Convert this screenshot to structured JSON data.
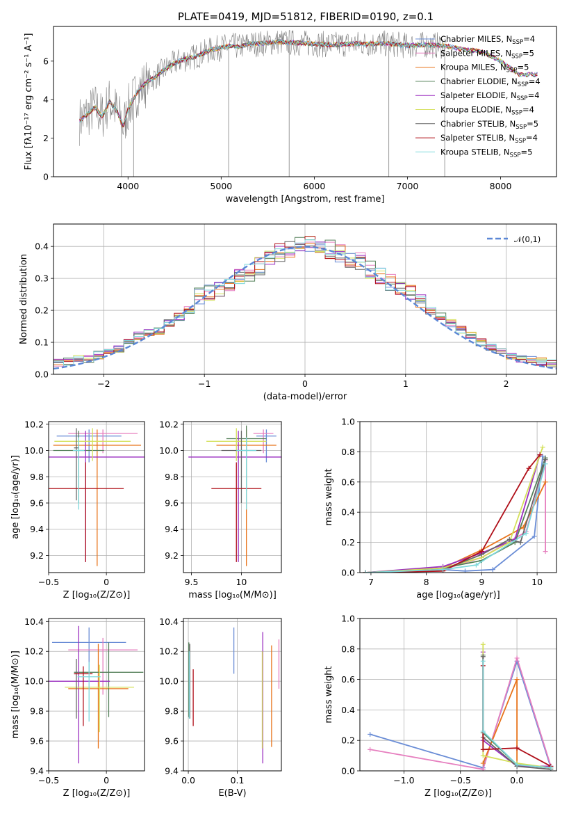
{
  "figure": {
    "title": "PLATE=0419, MJD=51812, FIBERID=0190, z=0.1"
  },
  "series": [
    {
      "name": "Chabrier MILES",
      "nssp": "4",
      "color": "#6a8dd6"
    },
    {
      "name": "Salpeter MILES",
      "nssp": "5",
      "color": "#e67fbf"
    },
    {
      "name": "Kroupa MILES",
      "nssp": "5",
      "color": "#e8731a"
    },
    {
      "name": "Chabrier ELODIE",
      "nssp": "4",
      "color": "#55805a"
    },
    {
      "name": "Salpeter ELODIE",
      "nssp": "4",
      "color": "#9b2fc0"
    },
    {
      "name": "Kroupa ELODIE",
      "nssp": "4",
      "color": "#d4e05a"
    },
    {
      "name": "Chabrier STELIB",
      "nssp": "5",
      "color": "#666666"
    },
    {
      "name": "Salpeter STELIB",
      "nssp": "4",
      "color": "#b0101a"
    },
    {
      "name": "Kroupa STELIB",
      "nssp": "5",
      "color": "#7dd8dc"
    }
  ],
  "chart_data": [
    {
      "id": "spectrum",
      "type": "line",
      "xlabel": "wavelength [Angstrom, rest frame]",
      "ylabel": "Flux [fλ10⁻¹⁷ erg cm⁻² s⁻¹ A⁻¹]",
      "xlim": [
        3200,
        8600
      ],
      "ylim": [
        0,
        7.8
      ],
      "xticks": [
        4000,
        5000,
        6000,
        7000,
        8000
      ],
      "yticks": [
        0,
        2,
        4,
        6
      ],
      "legend": "top-right",
      "model": {
        "x": [
          3480,
          3550,
          3650,
          3720,
          3800,
          3880,
          3950,
          4000,
          4100,
          4200,
          4300,
          4400,
          4500,
          4600,
          4700,
          4800,
          4900,
          5000,
          5100,
          5200,
          5300,
          5400,
          5500,
          5600,
          5800,
          6000,
          6200,
          6400,
          6600,
          6800,
          7000,
          7200,
          7400,
          7600,
          7800,
          8000,
          8200,
          8400
        ],
        "y": [
          2.9,
          3.2,
          3.6,
          3.1,
          3.9,
          3.4,
          2.6,
          3.5,
          4.4,
          4.9,
          5.2,
          5.6,
          5.9,
          6.1,
          6.2,
          6.4,
          6.6,
          6.7,
          6.8,
          6.75,
          6.9,
          6.9,
          6.95,
          7.0,
          6.95,
          6.9,
          6.85,
          6.9,
          6.9,
          6.9,
          6.8,
          6.85,
          6.8,
          6.6,
          6.5,
          6.0,
          5.3,
          5.3
        ]
      }
    },
    {
      "id": "residuals",
      "type": "line",
      "xlabel": "(data-model)/error",
      "ylabel": "Normed distribution",
      "xlim": [
        -2.5,
        2.5
      ],
      "ylim": [
        0,
        0.47
      ],
      "xticks": [
        -2,
        -1,
        0,
        1,
        2
      ],
      "yticks": [
        0.0,
        0.1,
        0.2,
        0.3,
        0.4
      ],
      "grid": true,
      "legend": "top-right",
      "reference_label": "𝒩(0,1)",
      "reference_color": "#5b87d6",
      "hist_x": [
        -2.5,
        -2.4,
        -2.3,
        -2.2,
        -2.1,
        -2.0,
        -1.9,
        -1.8,
        -1.7,
        -1.6,
        -1.5,
        -1.4,
        -1.3,
        -1.2,
        -1.1,
        -1.0,
        -0.9,
        -0.8,
        -0.7,
        -0.6,
        -0.5,
        -0.4,
        -0.3,
        -0.2,
        -0.1,
        0.0,
        0.1,
        0.2,
        0.3,
        0.4,
        0.5,
        0.6,
        0.7,
        0.8,
        0.9,
        1.0,
        1.1,
        1.2,
        1.3,
        1.4,
        1.5,
        1.6,
        1.7,
        1.8,
        1.9,
        2.0,
        2.1,
        2.2,
        2.3,
        2.4
      ],
      "hist_y": [
        0.035,
        0.04,
        0.05,
        0.048,
        0.06,
        0.07,
        0.08,
        0.1,
        0.12,
        0.13,
        0.135,
        0.16,
        0.18,
        0.2,
        0.24,
        0.25,
        0.26,
        0.28,
        0.3,
        0.32,
        0.34,
        0.36,
        0.38,
        0.39,
        0.4,
        0.41,
        0.4,
        0.39,
        0.38,
        0.36,
        0.35,
        0.33,
        0.31,
        0.29,
        0.27,
        0.25,
        0.22,
        0.2,
        0.18,
        0.16,
        0.14,
        0.12,
        0.1,
        0.085,
        0.07,
        0.06,
        0.05,
        0.045,
        0.04,
        0.035
      ]
    },
    {
      "id": "age_vs_Z",
      "type": "scatter",
      "xlabel": "Z [log₁₀(Z/Z⊙)]",
      "ylabel": "age  [log₁₀(age/yr)]",
      "xlim": [
        -0.5,
        0.33
      ],
      "ylim": [
        9.07,
        10.22
      ],
      "xticks": [
        -0.5,
        0.0
      ],
      "yticks": [
        9.2,
        9.4,
        9.6,
        9.8,
        10.0,
        10.2
      ],
      "grid": true,
      "points": [
        {
          "x": -0.15,
          "y": 10.11,
          "xerr": 0.28,
          "yerr_lo": 0.2,
          "yerr_hi": 0.05
        },
        {
          "x": -0.03,
          "y": 10.13,
          "xerr": 0.3,
          "yerr_lo": 0.15,
          "yerr_hi": 0.03
        },
        {
          "x": -0.08,
          "y": 10.04,
          "xerr": 0.38,
          "yerr_lo": 0.92,
          "yerr_hi": 0.12
        },
        {
          "x": -0.24,
          "y": 10.0,
          "xerr": 0.22,
          "yerr_lo": 0.4,
          "yerr_hi": 0.15
        },
        {
          "x": -0.18,
          "y": 9.95,
          "xerr": 0.52,
          "yerr_lo": 0.8,
          "yerr_hi": 0.2
        },
        {
          "x": -0.12,
          "y": 10.07,
          "xerr": 0.33,
          "yerr_lo": 0.15,
          "yerr_hi": 0.1
        },
        {
          "x": -0.26,
          "y": 10.02,
          "xerr": 0.02,
          "yerr_lo": 0.4,
          "yerr_hi": 0.15
        },
        {
          "x": -0.18,
          "y": 9.71,
          "xerr": 0.33,
          "yerr_lo": 0.56,
          "yerr_hi": 0.2
        },
        {
          "x": -0.24,
          "y": 10.0,
          "xerr": 0.05,
          "yerr_lo": 0.45,
          "yerr_hi": 0.1
        }
      ]
    },
    {
      "id": "age_vs_mass",
      "type": "scatter",
      "xlabel": "mass [log₁₀(M/M⊙)]",
      "ylabel": "",
      "xlim": [
        9.42,
        10.4
      ],
      "ylim": [
        9.07,
        10.22
      ],
      "xticks": [
        9.5,
        10.0
      ],
      "yticks": [
        9.2,
        9.4,
        9.6,
        9.8,
        10.0,
        10.2
      ],
      "grid": true,
      "points": [
        {
          "x": 10.25,
          "y": 10.11,
          "xerr": 0.1,
          "yerr_lo": 0.2,
          "yerr_hi": 0.05
        },
        {
          "x": 10.22,
          "y": 10.13,
          "xerr": 0.1,
          "yerr_lo": 0.15,
          "yerr_hi": 0.03
        },
        {
          "x": 10.05,
          "y": 10.04,
          "xerr": 0.3,
          "yerr_lo": 0.92,
          "yerr_hi": 0.12
        },
        {
          "x": 10.05,
          "y": 10.09,
          "xerr": 0.2,
          "yerr_lo": 0.4,
          "yerr_hi": 0.1
        },
        {
          "x": 9.97,
          "y": 9.95,
          "xerr": 0.5,
          "yerr_lo": 0.8,
          "yerr_hi": 0.2
        },
        {
          "x": 9.95,
          "y": 10.07,
          "xerr": 0.3,
          "yerr_lo": 0.15,
          "yerr_hi": 0.1
        },
        {
          "x": 10.0,
          "y": 10.0,
          "xerr": 0.2,
          "yerr_lo": 0.4,
          "yerr_hi": 0.15
        },
        {
          "x": 9.95,
          "y": 9.71,
          "xerr": 0.25,
          "yerr_lo": 0.56,
          "yerr_hi": 0.2
        },
        {
          "x": 10.05,
          "y": 10.0,
          "xerr": 0.1,
          "yerr_lo": 0.45,
          "yerr_hi": 0.1
        }
      ]
    },
    {
      "id": "mass_weight_vs_age",
      "type": "line",
      "xlabel": "age  [log₁₀(age/yr)]",
      "ylabel": "mass weight",
      "xlim": [
        6.8,
        10.35
      ],
      "ylim": [
        0,
        1
      ],
      "xticks": [
        7,
        8,
        9,
        10
      ],
      "yticks": [
        0.0,
        0.2,
        0.4,
        0.6,
        0.8,
        1.0
      ],
      "grid": true,
      "series_points": [
        [
          [
            6.9,
            0.0
          ],
          [
            8.3,
            0.02
          ],
          [
            8.7,
            0.01
          ],
          [
            9.2,
            0.02
          ],
          [
            9.95,
            0.24
          ],
          [
            10.1,
            0.77
          ]
        ],
        [
          [
            6.9,
            0.0
          ],
          [
            8.3,
            0.02
          ],
          [
            9.0,
            0.1
          ],
          [
            9.8,
            0.27
          ],
          [
            10.15,
            0.74
          ],
          [
            10.15,
            0.14
          ]
        ],
        [
          [
            6.9,
            0.0
          ],
          [
            8.3,
            0.03
          ],
          [
            9.0,
            0.15
          ],
          [
            9.75,
            0.3
          ],
          [
            10.15,
            0.6
          ]
        ],
        [
          [
            6.9,
            0.0
          ],
          [
            8.3,
            0.03
          ],
          [
            9.0,
            0.08
          ],
          [
            9.6,
            0.2
          ],
          [
            10.15,
            0.76
          ]
        ],
        [
          [
            6.9,
            0.0
          ],
          [
            8.3,
            0.04
          ],
          [
            9.0,
            0.13
          ],
          [
            9.6,
            0.22
          ],
          [
            10.05,
            0.78
          ]
        ],
        [
          [
            6.9,
            0.0
          ],
          [
            8.3,
            0.03
          ],
          [
            9.0,
            0.1
          ],
          [
            9.5,
            0.2
          ],
          [
            10.1,
            0.83
          ]
        ],
        [
          [
            6.9,
            0.0
          ],
          [
            8.3,
            0.02
          ],
          [
            9.0,
            0.12
          ],
          [
            9.5,
            0.22
          ],
          [
            9.7,
            0.2
          ],
          [
            10.15,
            0.75
          ]
        ],
        [
          [
            6.9,
            0.0
          ],
          [
            8.3,
            0.01
          ],
          [
            9.0,
            0.14
          ],
          [
            9.85,
            0.69
          ],
          [
            10.05,
            0.78
          ]
        ],
        [
          [
            6.9,
            0.0
          ],
          [
            8.3,
            0.02
          ],
          [
            8.9,
            0.05
          ],
          [
            9.8,
            0.26
          ],
          [
            10.15,
            0.72
          ]
        ]
      ]
    },
    {
      "id": "mass_vs_Z",
      "type": "scatter",
      "xlabel": "Z [log₁₀(Z/Z⊙)]",
      "ylabel": "mass [log₁₀(M/M⊙)]",
      "xlim": [
        -0.5,
        0.33
      ],
      "ylim": [
        9.4,
        10.42
      ],
      "xticks": [
        -0.5,
        0.0
      ],
      "yticks": [
        9.4,
        9.6,
        9.8,
        10.0,
        10.2,
        10.4
      ],
      "grid": true,
      "points": [
        {
          "x": -0.15,
          "y": 10.26,
          "xerr": 0.32,
          "yerr_lo": 0.2,
          "yerr_hi": 0.1
        },
        {
          "x": -0.03,
          "y": 10.21,
          "xerr": 0.3,
          "yerr_lo": 0.3,
          "yerr_hi": 0.08
        },
        {
          "x": -0.07,
          "y": 9.95,
          "xerr": 0.26,
          "yerr_lo": 0.4,
          "yerr_hi": 0.3
        },
        {
          "x": 0.02,
          "y": 10.06,
          "xerr": 0.3,
          "yerr_lo": 0.3,
          "yerr_hi": 0.2
        },
        {
          "x": -0.24,
          "y": 10.0,
          "xerr": 0.27,
          "yerr_lo": 0.55,
          "yerr_hi": 0.37
        },
        {
          "x": -0.06,
          "y": 9.96,
          "xerr": 0.3,
          "yerr_lo": 0.3,
          "yerr_hi": 0.15
        },
        {
          "x": -0.26,
          "y": 10.05,
          "xerr": 0.02,
          "yerr_lo": 0.3,
          "yerr_hi": 0.1
        },
        {
          "x": -0.2,
          "y": 10.05,
          "xerr": 0.08,
          "yerr_lo": 0.35,
          "yerr_hi": 0.05
        },
        {
          "x": -0.15,
          "y": 10.03,
          "xerr": 0.1,
          "yerr_lo": 0.3,
          "yerr_hi": 0.1
        }
      ]
    },
    {
      "id": "mass_vs_ebv",
      "type": "scatter",
      "xlabel": "E(B-V)",
      "ylabel": "",
      "xlim": [
        -0.01,
        0.19
      ],
      "ylim": [
        9.4,
        10.42
      ],
      "xticks": [
        0.0,
        0.1
      ],
      "xtick_labels": [
        "0.0",
        "0.1"
      ],
      "yticks": [
        9.4,
        9.6,
        9.8,
        10.0,
        10.2,
        10.4
      ],
      "grid": true,
      "points": [
        {
          "x": 0.093,
          "y": 10.2,
          "xerr": 0,
          "yerr_lo": 0.15,
          "yerr_hi": 0.16
        },
        {
          "x": 0.185,
          "y": 10.1,
          "xerr": 0,
          "yerr_lo": 0.15,
          "yerr_hi": 0.18
        },
        {
          "x": 0.17,
          "y": 9.9,
          "xerr": 0,
          "yerr_lo": 0.34,
          "yerr_hi": 0.34
        },
        {
          "x": 0.001,
          "y": 10.06,
          "xerr": 0,
          "yerr_lo": 0.3,
          "yerr_hi": 0.2
        },
        {
          "x": 0.152,
          "y": 10.0,
          "xerr": 0,
          "yerr_lo": 0.55,
          "yerr_hi": 0.33
        },
        {
          "x": 0.151,
          "y": 9.95,
          "xerr": 0,
          "yerr_lo": 0.4,
          "yerr_hi": 0.25
        },
        {
          "x": 0.003,
          "y": 10.05,
          "xerr": 0,
          "yerr_lo": 0.3,
          "yerr_hi": 0.2
        },
        {
          "x": 0.01,
          "y": 9.9,
          "xerr": 0,
          "yerr_lo": 0.2,
          "yerr_hi": 0.18
        },
        {
          "x": 0.002,
          "y": 10.0,
          "xerr": 0,
          "yerr_lo": 0.25,
          "yerr_hi": 0.2
        }
      ]
    },
    {
      "id": "mass_weight_vs_Z",
      "type": "line",
      "xlabel": "Z [log₁₀(Z/Z⊙)]",
      "ylabel": "mass weight",
      "xlim": [
        -1.39,
        0.35
      ],
      "ylim": [
        0,
        1
      ],
      "xticks": [
        -1.0,
        -0.5,
        0.0
      ],
      "xtick_labels": [
        "−1.0",
        "−0.5",
        "0.0"
      ],
      "yticks": [
        0.0,
        0.2,
        0.4,
        0.6,
        0.8,
        1.0
      ],
      "grid": true,
      "series_points": [
        [
          [
            -1.3,
            0.24
          ],
          [
            -0.3,
            0.02
          ],
          [
            0.0,
            0.72
          ],
          [
            0.3,
            0.02
          ]
        ],
        [
          [
            -1.3,
            0.14
          ],
          [
            -0.3,
            0.01
          ],
          [
            0.0,
            0.74
          ],
          [
            0.3,
            0.03
          ]
        ],
        [
          [
            -0.3,
            0.05
          ],
          [
            0.0,
            0.6
          ],
          [
            0.0,
            0.04
          ],
          [
            0.3,
            0.02
          ]
        ],
        [
          [
            -0.3,
            0.76
          ],
          [
            -0.3,
            0.25
          ],
          [
            0.0,
            0.04
          ],
          [
            0.3,
            0.02
          ]
        ],
        [
          [
            -0.3,
            0.78
          ],
          [
            -0.3,
            0.2
          ],
          [
            0.0,
            0.03
          ],
          [
            0.3,
            0.03
          ]
        ],
        [
          [
            -0.3,
            0.83
          ],
          [
            -0.3,
            0.1
          ],
          [
            0.0,
            0.05
          ],
          [
            0.3,
            0.02
          ]
        ],
        [
          [
            -0.3,
            0.75
          ],
          [
            -0.3,
            0.22
          ],
          [
            0.0,
            0.03
          ],
          [
            0.3,
            0.01
          ]
        ],
        [
          [
            -0.3,
            0.69
          ],
          [
            -0.3,
            0.14
          ],
          [
            0.0,
            0.15
          ],
          [
            0.3,
            0.03
          ]
        ],
        [
          [
            -0.3,
            0.72
          ],
          [
            -0.3,
            0.26
          ],
          [
            0.0,
            0.04
          ],
          [
            0.3,
            0.02
          ]
        ]
      ]
    }
  ]
}
